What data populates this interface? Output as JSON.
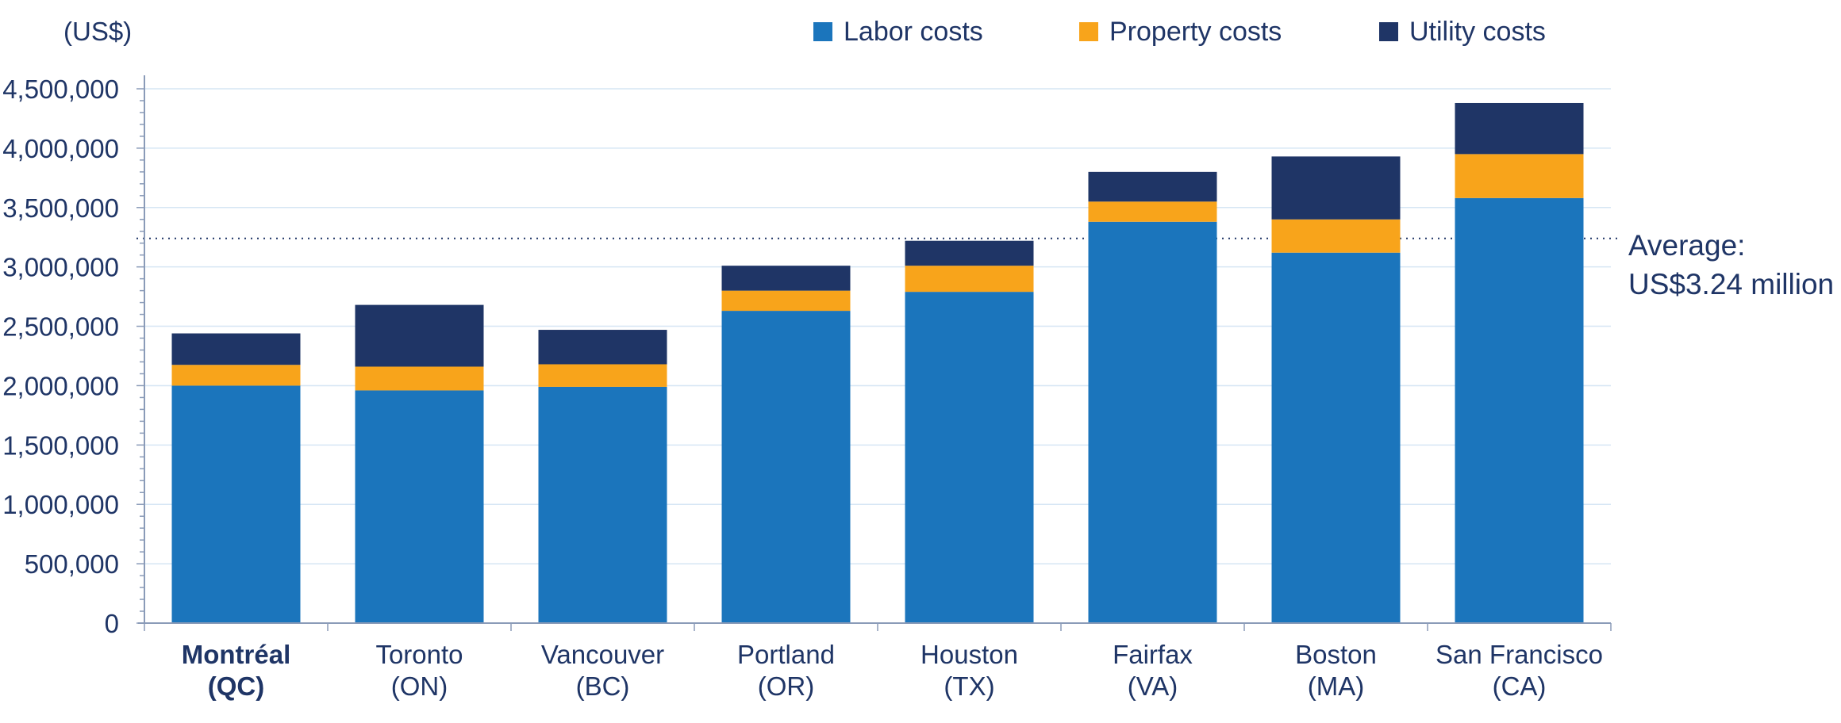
{
  "chart_data": {
    "type": "bar",
    "stacked": true,
    "unit_label": "(US$)",
    "categories": [
      {
        "line1": "Montréal",
        "line2": "(QC)",
        "bold": true
      },
      {
        "line1": "Toronto",
        "line2": "(ON)",
        "bold": false
      },
      {
        "line1": "Vancouver",
        "line2": "(BC)",
        "bold": false
      },
      {
        "line1": "Portland",
        "line2": "(OR)",
        "bold": false
      },
      {
        "line1": "Houston",
        "line2": "(TX)",
        "bold": false
      },
      {
        "line1": "Fairfax",
        "line2": "(VA)",
        "bold": false
      },
      {
        "line1": "Boston",
        "line2": "(MA)",
        "bold": false
      },
      {
        "line1": "San Francisco",
        "line2": "(CA)",
        "bold": false
      }
    ],
    "series": [
      {
        "name": "Labor costs",
        "color": "#1b75bc",
        "values": [
          2000000,
          1960000,
          1990000,
          2630000,
          2790000,
          3380000,
          3120000,
          3580000
        ]
      },
      {
        "name": "Property costs",
        "color": "#f8a41b",
        "values": [
          175000,
          200000,
          190000,
          170000,
          220000,
          170000,
          280000,
          370000
        ]
      },
      {
        "name": "Utility costs",
        "color": "#1f3566",
        "values": [
          265000,
          520000,
          290000,
          210000,
          210000,
          250000,
          530000,
          430000
        ]
      }
    ],
    "yticks": [
      "0",
      "500,000",
      "1,000,000",
      "1,500,000",
      "2,000,000",
      "2,500,000",
      "3,000,000",
      "3,500,000",
      "4,000,000",
      "4,500,000"
    ],
    "ylim": [
      0,
      4500000
    ],
    "average": {
      "value": 3240000,
      "label_line1": "Average:",
      "label_line2": "US$3.24 million"
    },
    "grid": true,
    "legend_position": "top-right"
  }
}
